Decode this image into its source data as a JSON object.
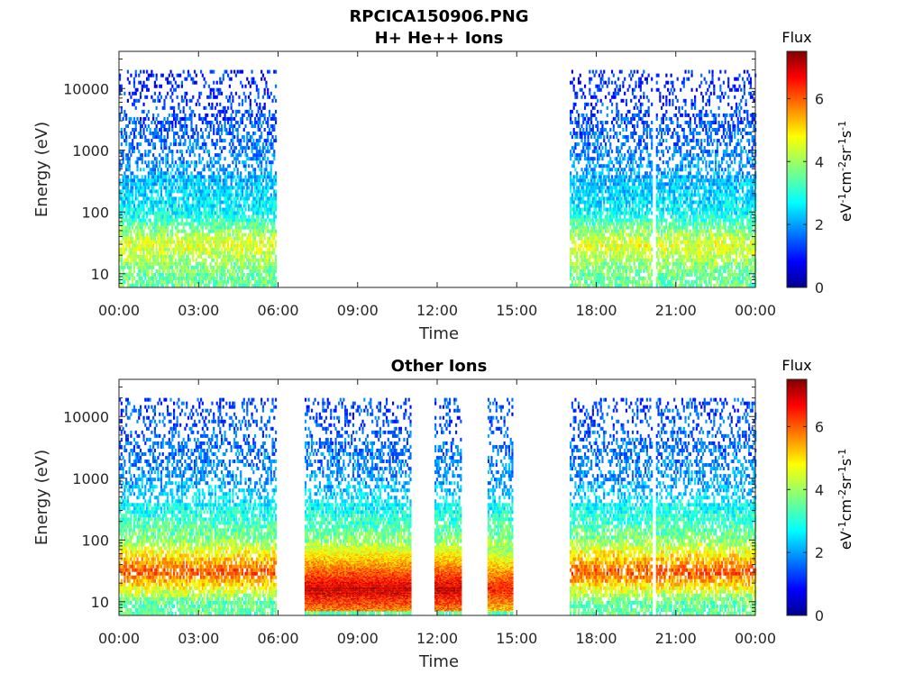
{
  "figure_title": "RPCICA150906.PNG",
  "colors": {
    "axis": "#262626",
    "background": "#ffffff"
  },
  "chart_data": [
    {
      "type": "heatmap",
      "title": "H+ He++ Ions",
      "xlabel": "Time",
      "ylabel": "Energy (eV)",
      "x_ticks": [
        "00:00",
        "03:00",
        "06:00",
        "09:00",
        "12:00",
        "15:00",
        "18:00",
        "21:00",
        "00:00"
      ],
      "x_range_hours": [
        0,
        24
      ],
      "y_scale": "log",
      "y_ticks": [
        10,
        100,
        1000,
        10000
      ],
      "y_tick_labels": [
        "10",
        "100",
        "1000",
        "10000"
      ],
      "ylim": [
        6,
        40000
      ],
      "colorbar": {
        "label": "Flux",
        "unit_label": "eV-1cm-2sr-1s-1",
        "ticks": [
          0,
          2,
          4,
          6
        ],
        "range": [
          0,
          7.5
        ],
        "colormap": "jet"
      },
      "data_intervals_hours": [
        [
          0,
          5.9
        ],
        [
          17.0,
          20.1
        ],
        [
          20.25,
          24
        ]
      ],
      "energy_extent_eV": [
        6,
        20000
      ],
      "flux_profile": [
        {
          "energy_eV": 10000,
          "flux": 1.2
        },
        {
          "energy_eV": 1000,
          "flux": 1.8
        },
        {
          "energy_eV": 100,
          "flux": 2.8
        },
        {
          "energy_eV": 30,
          "flux": 4.5
        },
        {
          "energy_eV": 10,
          "flux": 3.6
        }
      ]
    },
    {
      "type": "heatmap",
      "title": "Other Ions",
      "xlabel": "Time",
      "ylabel": "Energy (eV)",
      "x_ticks": [
        "00:00",
        "03:00",
        "06:00",
        "09:00",
        "12:00",
        "15:00",
        "18:00",
        "21:00",
        "00:00"
      ],
      "x_range_hours": [
        0,
        24
      ],
      "y_scale": "log",
      "y_ticks": [
        10,
        100,
        1000,
        10000
      ],
      "y_tick_labels": [
        "10",
        "100",
        "1000",
        "10000"
      ],
      "ylim": [
        6,
        40000
      ],
      "colorbar": {
        "label": "Flux",
        "unit_label": "eV-1cm-2sr-1s-1",
        "ticks": [
          0,
          2,
          4,
          6
        ],
        "range": [
          0,
          7.5
        ],
        "colormap": "jet"
      },
      "data_intervals_hours": [
        [
          0,
          5.9
        ],
        [
          7.0,
          11.0
        ],
        [
          11.9,
          12.9
        ],
        [
          13.9,
          14.85
        ],
        [
          17.0,
          20.1
        ],
        [
          20.25,
          24
        ]
      ],
      "energy_extent_eV": [
        6,
        20000
      ],
      "high_flux_bursts": [
        {
          "t_start_hours": 7.0,
          "t_end_hours": 11.0,
          "energy_range_eV": [
            7,
            80
          ],
          "peak_flux": 7.0
        },
        {
          "t_start_hours": 11.9,
          "t_end_hours": 12.9,
          "energy_range_eV": [
            7,
            80
          ],
          "peak_flux": 7.0
        },
        {
          "t_start_hours": 13.9,
          "t_end_hours": 14.85,
          "energy_range_eV": [
            7,
            80
          ],
          "peak_flux": 6.5
        }
      ],
      "flux_profile": [
        {
          "energy_eV": 10000,
          "flux": 1.5
        },
        {
          "energy_eV": 1000,
          "flux": 2.0
        },
        {
          "energy_eV": 100,
          "flux": 3.8
        },
        {
          "energy_eV": 30,
          "flux": 6.0
        },
        {
          "energy_eV": 10,
          "flux": 3.5
        }
      ]
    }
  ]
}
